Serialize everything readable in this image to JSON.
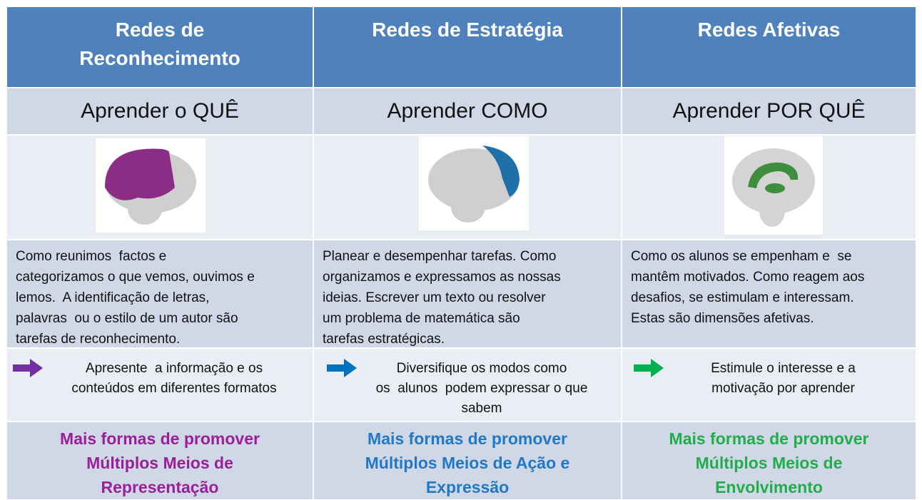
{
  "columns": [
    {
      "header": [
        "Redes de",
        "Reconhecimento"
      ],
      "subtitle": "Aprender o QUÊ",
      "description": [
        "Como reunimos  factos e",
        "categorizamos o que vemos, ouvimos e",
        "lemos.  A identificação de letras,",
        "palavras  ou o estilo de um autor são",
        "tarefas de reconhecimento."
      ],
      "action": [
        "Apresente  a informação e os",
        "conteúdos em diferentes formatos"
      ],
      "footer": [
        "Mais formas de promover",
        "Múltiplos Meios de",
        "Representação"
      ]
    },
    {
      "header": [
        "Redes de Estratégia"
      ],
      "subtitle": "Aprender COMO",
      "description": [
        "Planear e desempenhar tarefas. Como",
        "organizamos e expressamos as nossas",
        "ideias. Escrever um texto ou resolver",
        "um problema de matemática são",
        "tarefas estratégicas."
      ],
      "action": [
        "Diversifique os modos como",
        "os  alunos  podem expressar o que",
        "sabem"
      ],
      "footer": [
        "Mais formas de promover",
        "Múltiplos Meios de Ação e",
        "Expressão"
      ]
    },
    {
      "header": [
        "Redes Afetivas"
      ],
      "subtitle": "Aprender POR QUÊ",
      "description": [
        "Como os alunos se empenham e  se",
        "mantêm motivados. Como reagem aos",
        "desafios, se estimulam e interessam.",
        "Estas são dimensões afetivas."
      ],
      "action": [
        "Estimule o interesse e a",
        "motivação por aprender"
      ],
      "footer": [
        "Mais formas de promover",
        "Múltiplos Meios de",
        "Envolvimento"
      ]
    }
  ]
}
